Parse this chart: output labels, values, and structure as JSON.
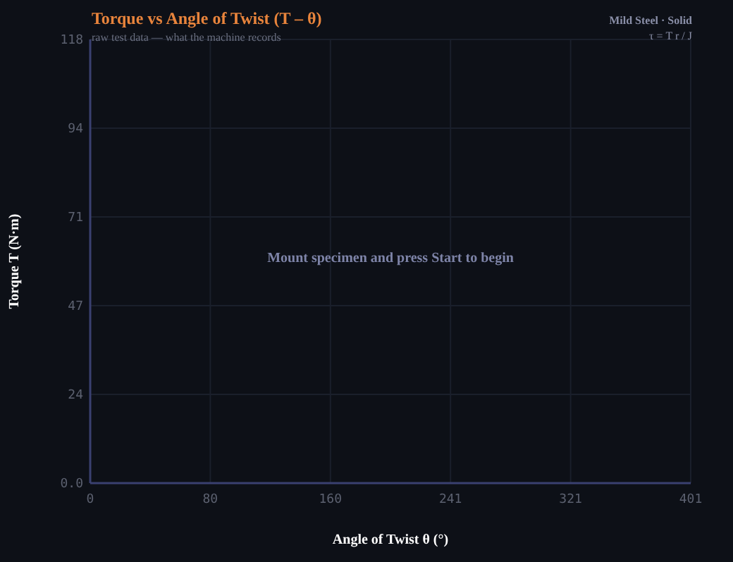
{
  "chart_data": {
    "type": "line",
    "title": "Torque vs Angle of Twist  (T – θ)",
    "subtitle": "raw test data — what the machine records",
    "xlabel": "Angle of Twist  θ (°)",
    "ylabel": "Torque  T (N·m)",
    "annotations": [
      "Mild Steel · Solid",
      "τ = T r / J",
      "Mount specimen and press Start to begin"
    ],
    "xlim": [
      0,
      401
    ],
    "xticks": [
      0,
      {
        "value": 80.2,
        "label": "80"
      },
      {
        "value": 160.4,
        "label": "160"
      },
      {
        "value": 240.6,
        "label": "241"
      },
      {
        "value": 320.8,
        "label": "321"
      },
      401
    ],
    "ylim": [
      0,
      118
    ],
    "yticks": [
      {
        "value": 0,
        "label": "0.0"
      },
      {
        "value": 23.6,
        "label": "24"
      },
      {
        "value": 47.2,
        "label": "47"
      },
      {
        "value": 70.8,
        "label": "71"
      },
      {
        "value": 94.4,
        "label": "94"
      },
      118
    ],
    "grid": true
  }
}
